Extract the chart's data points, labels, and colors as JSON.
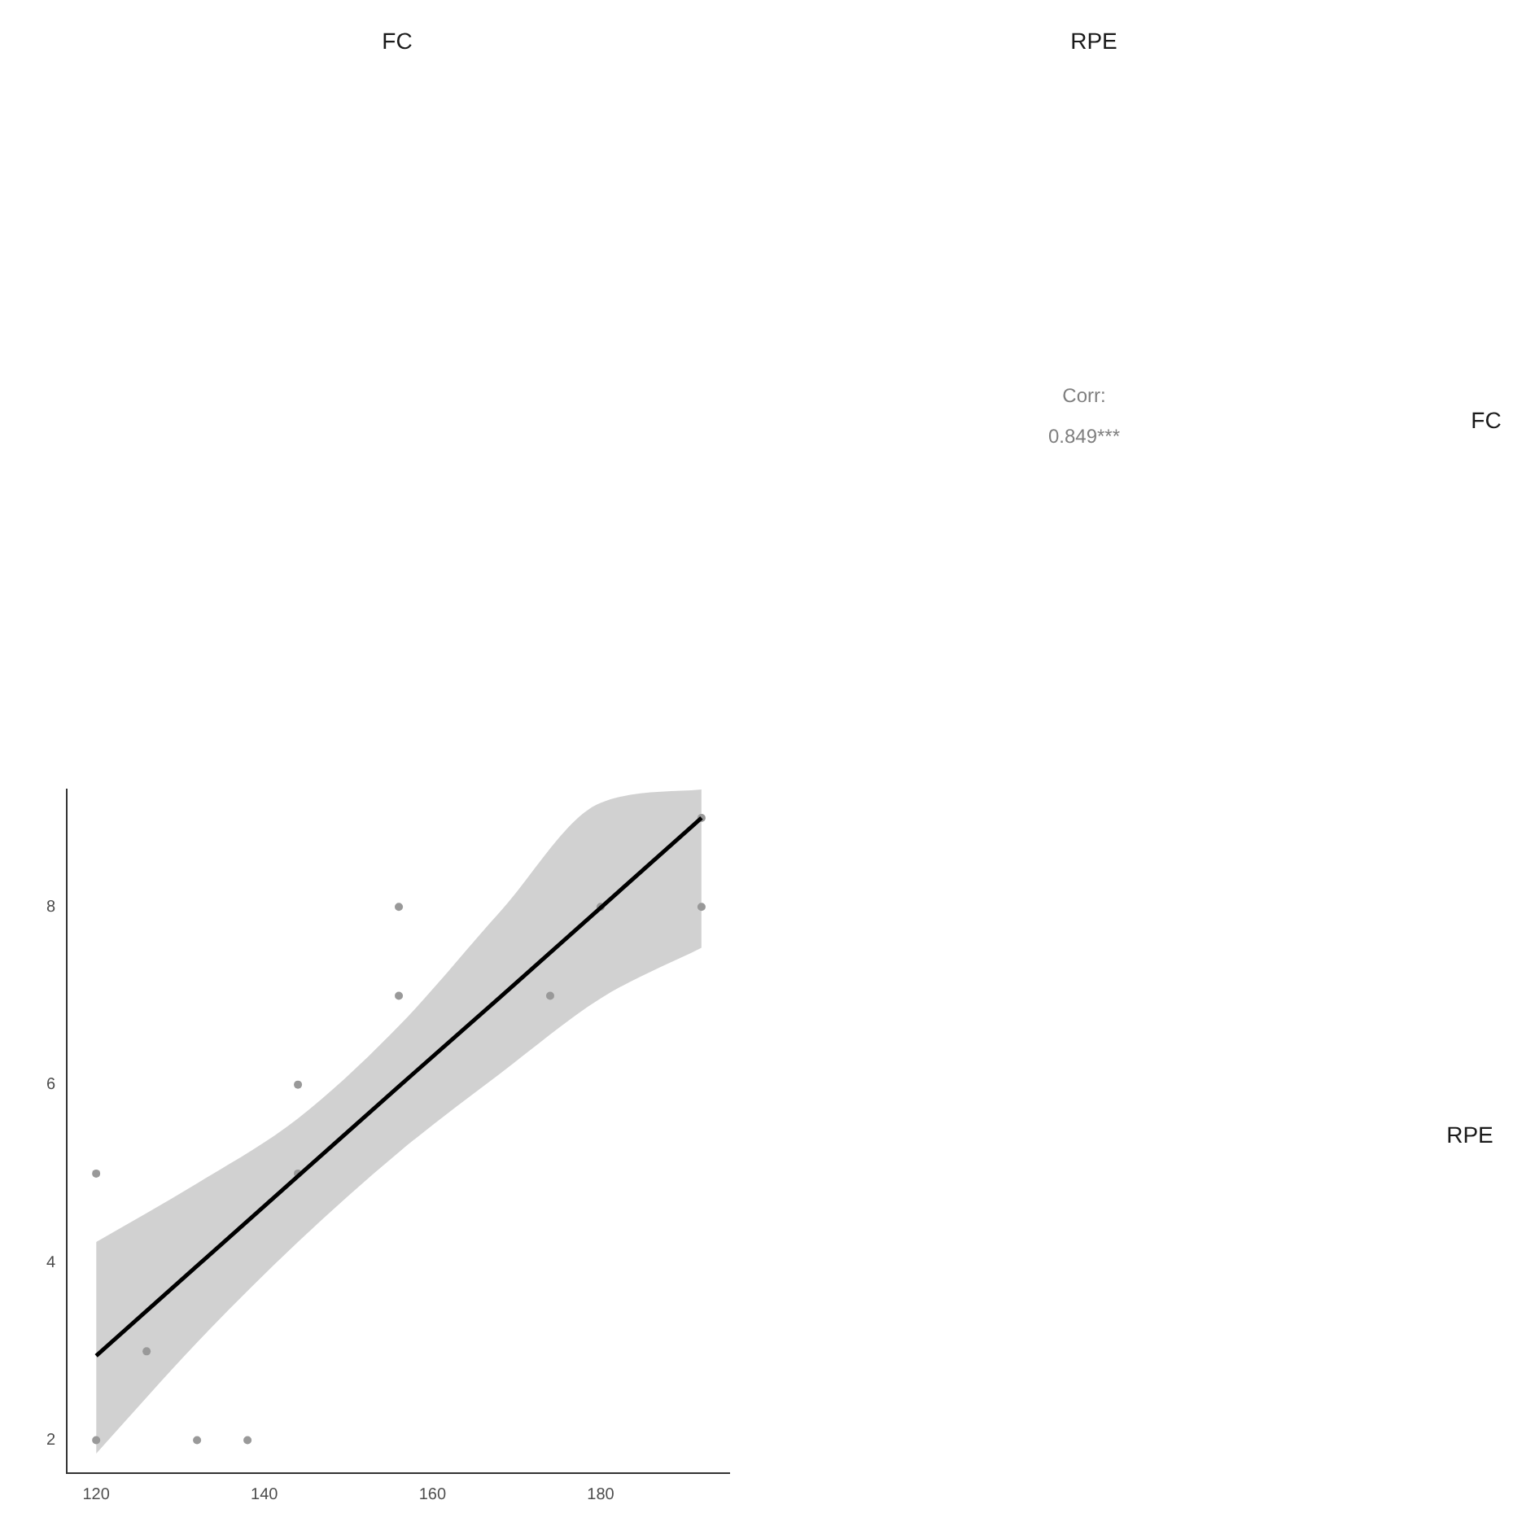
{
  "chart_data": {
    "type": "scatter",
    "annotations": [
      "FC",
      "RPE",
      "FC",
      "RPE",
      "Corr:",
      "0.849***"
    ],
    "xlim": [
      116.5,
      195.3
    ],
    "ylim": [
      1.63,
      9.32
    ],
    "xticks": [
      120,
      140,
      160,
      180
    ],
    "yticks": [
      2,
      4,
      6,
      8
    ],
    "series": [
      {
        "type": "scatter",
        "color": "#999999",
        "x": [
          120,
          120,
          126,
          132,
          138,
          144,
          144,
          156,
          156,
          174,
          180,
          192,
          192
        ],
        "values": [
          2,
          5,
          3,
          2,
          2,
          6,
          5,
          8,
          7,
          7,
          8,
          9,
          8
        ]
      },
      {
        "type": "line",
        "color": "#000000",
        "x": [
          120,
          132,
          144,
          156,
          168,
          180,
          192
        ],
        "values": [
          2.95,
          3.96,
          4.97,
          5.98,
          6.98,
          7.99,
          9.0
        ],
        "lower": [
          1.85,
          3.1,
          4.23,
          5.24,
          6.12,
          6.97,
          7.54
        ],
        "upper": [
          4.23,
          4.89,
          5.62,
          6.66,
          7.94,
          9.17,
          9.32
        ]
      }
    ]
  }
}
